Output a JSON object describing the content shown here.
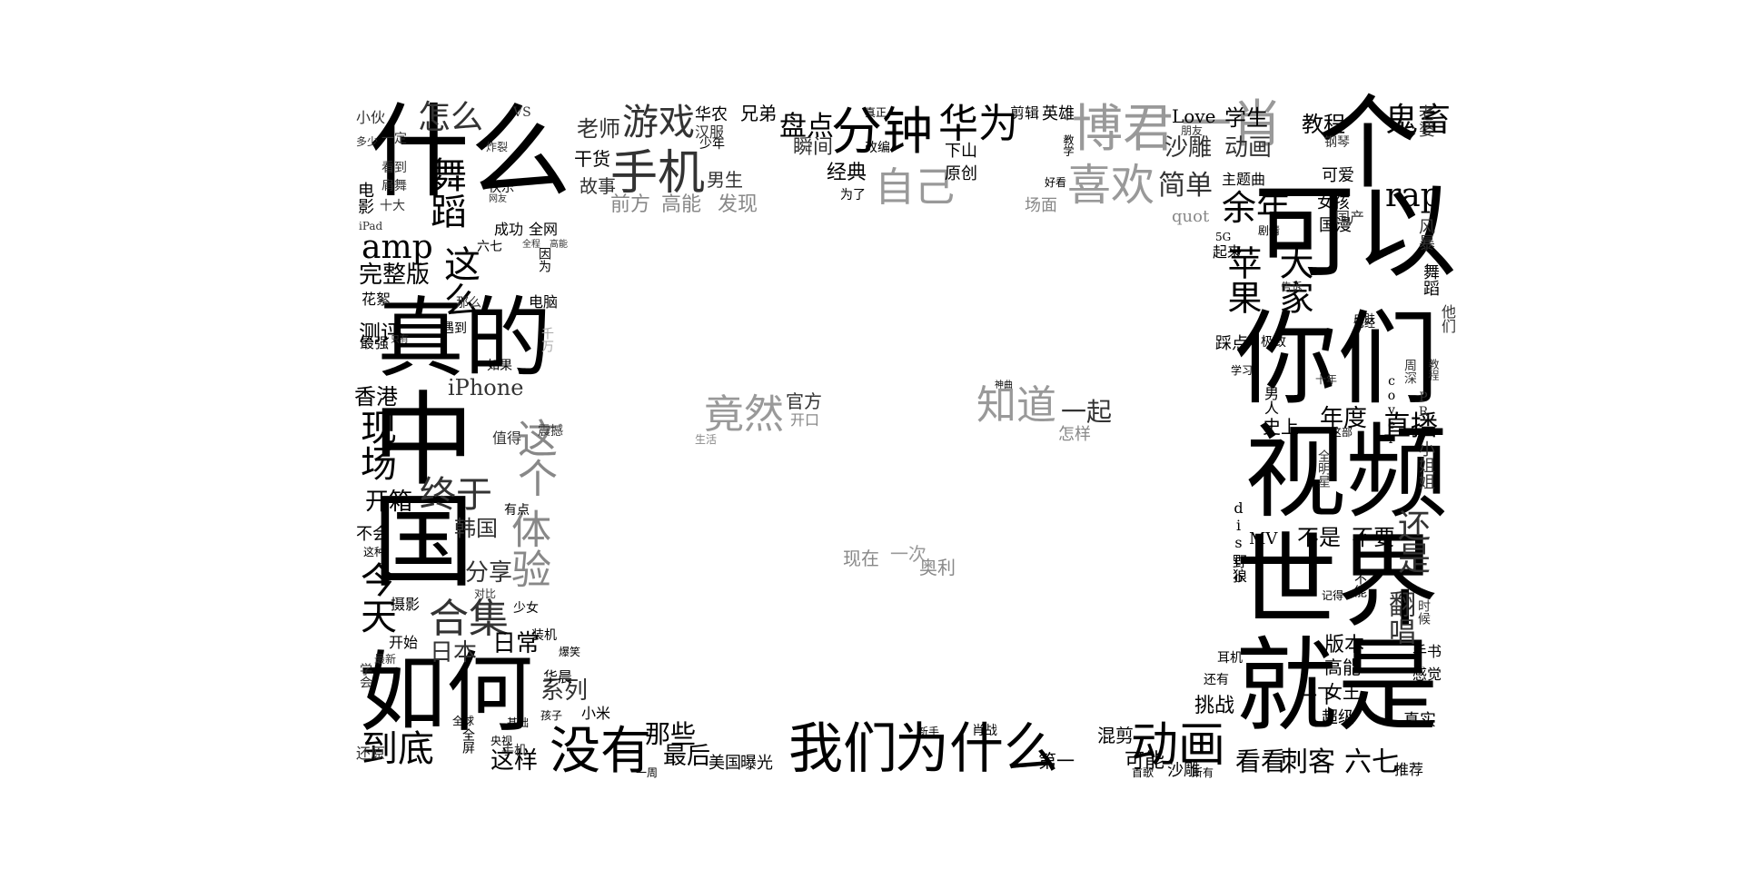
{
  "words": [
    {
      "text": "什么"
    },
    {
      "text": "个"
    },
    {
      "text": "可以"
    },
    {
      "text": "你们"
    },
    {
      "text": "视频"
    },
    {
      "text": "世界"
    },
    {
      "text": "就是"
    },
    {
      "text": "如何"
    },
    {
      "text": "真的"
    },
    {
      "text": "中国"
    },
    {
      "text": "我们"
    },
    {
      "text": "为什么"
    },
    {
      "text": "没有"
    },
    {
      "text": "动画"
    },
    {
      "text": "分钟"
    },
    {
      "text": "华为"
    },
    {
      "text": "博君"
    },
    {
      "text": "一肖"
    },
    {
      "text": "喜欢"
    },
    {
      "text": "自己"
    },
    {
      "text": "手机"
    },
    {
      "text": "游戏"
    },
    {
      "text": "知道"
    },
    {
      "text": "竟然"
    },
    {
      "text": "体验"
    },
    {
      "text": "这个"
    },
    {
      "text": "合集"
    },
    {
      "text": "今天"
    },
    {
      "text": "现场"
    },
    {
      "text": "终于"
    },
    {
      "text": "这么"
    },
    {
      "text": "舞蹈"
    },
    {
      "text": "怎么"
    },
    {
      "text": "余年"
    },
    {
      "text": "苹果"
    },
    {
      "text": "大家"
    },
    {
      "text": "还是"
    },
    {
      "text": "rap"
    },
    {
      "text": "鬼畜"
    },
    {
      "text": "amp"
    },
    {
      "text": "到底"
    },
    {
      "text": "简单"
    },
    {
      "text": "刺客"
    },
    {
      "text": "看看"
    },
    {
      "text": "六七"
    },
    {
      "text": "直播"
    },
    {
      "text": "翻唱"
    },
    {
      "text": "一起"
    },
    {
      "text": "盘点"
    },
    {
      "text": "完整版"
    },
    {
      "text": "iPhone"
    },
    {
      "text": "老师"
    },
    {
      "text": "那些"
    },
    {
      "text": "这样"
    },
    {
      "text": "最后"
    },
    {
      "text": "开箱"
    },
    {
      "text": "日本"
    },
    {
      "text": "系列"
    },
    {
      "text": "日常"
    },
    {
      "text": "分享"
    },
    {
      "text": "韩国"
    },
    {
      "text": "香港"
    },
    {
      "text": "测评"
    },
    {
      "text": "教程"
    },
    {
      "text": "学生"
    },
    {
      "text": "动画"
    },
    {
      "text": "沙雕"
    },
    {
      "text": "Love"
    },
    {
      "text": "英雄"
    },
    {
      "text": "剪辑"
    },
    {
      "text": "下山"
    },
    {
      "text": "原创"
    },
    {
      "text": "经典"
    },
    {
      "text": "瞬间"
    },
    {
      "text": "男生"
    },
    {
      "text": "干货"
    },
    {
      "text": "故事"
    },
    {
      "text": "前方"
    },
    {
      "text": "高能"
    },
    {
      "text": "发现"
    },
    {
      "text": "官方"
    },
    {
      "text": "开口"
    },
    {
      "text": "怎样"
    },
    {
      "text": "现在"
    },
    {
      "text": "一次"
    },
    {
      "text": "奥利"
    },
    {
      "text": "生活"
    },
    {
      "text": "年度"
    },
    {
      "text": "史上"
    },
    {
      "text": "不是"
    },
    {
      "text": "不要"
    },
    {
      "text": "版本"
    },
    {
      "text": "高能"
    },
    {
      "text": "女王"
    },
    {
      "text": "挑战"
    },
    {
      "text": "一下"
    },
    {
      "text": "混剪"
    },
    {
      "text": "可能"
    },
    {
      "text": "第一"
    },
    {
      "text": "沙雕"
    },
    {
      "text": "美国"
    },
    {
      "text": "曝光"
    },
    {
      "text": "华农"
    },
    {
      "text": "兄弟"
    },
    {
      "text": "少年"
    },
    {
      "text": "汉服"
    },
    {
      "text": "真正"
    },
    {
      "text": "改编"
    },
    {
      "text": "为了"
    },
    {
      "text": "场面"
    },
    {
      "text": "好看"
    },
    {
      "text": "主题曲"
    },
    {
      "text": "可爱"
    },
    {
      "text": "女孩"
    },
    {
      "text": "国漫"
    },
    {
      "text": "国产"
    },
    {
      "text": "老婆"
    },
    {
      "text": "风暴"
    },
    {
      "text": "quot"
    },
    {
      "text": "起来"
    },
    {
      "text": "踩点"
    },
    {
      "text": "极致"
    },
    {
      "text": "MV"
    },
    {
      "text": "disco"
    },
    {
      "text": "野狼"
    },
    {
      "text": "小姐姐"
    },
    {
      "text": "cover"
    },
    {
      "text": "男人"
    },
    {
      "text": "耳机"
    },
    {
      "text": "还有"
    },
    {
      "text": "超级"
    },
    {
      "text": "真实"
    },
    {
      "text": "推荐"
    },
    {
      "text": "感觉"
    },
    {
      "text": "手书"
    },
    {
      "text": "时候"
    },
    {
      "text": "首歌"
    },
    {
      "text": "所有"
    },
    {
      "text": "小伙"
    },
    {
      "text": "多少"
    },
    {
      "text": "一定"
    },
    {
      "text": "看到"
    },
    {
      "text": "肩舞"
    },
    {
      "text": "十大"
    },
    {
      "text": "电影"
    },
    {
      "text": "快乐"
    },
    {
      "text": "网友"
    },
    {
      "text": "炸裂"
    },
    {
      "text": "VS"
    },
    {
      "text": "成功"
    },
    {
      "text": "全网"
    },
    {
      "text": "六七"
    },
    {
      "text": "全程"
    },
    {
      "text": "高能"
    },
    {
      "text": "因为"
    },
    {
      "text": "花絮"
    },
    {
      "text": "那么"
    },
    {
      "text": "电脑"
    },
    {
      "text": "遇到"
    },
    {
      "text": "最强"
    },
    {
      "text": "只有"
    },
    {
      "text": "如果"
    },
    {
      "text": "值得"
    },
    {
      "text": "震撼"
    },
    {
      "text": "有点"
    },
    {
      "text": "不会"
    },
    {
      "text": "这种"
    },
    {
      "text": "对比"
    },
    {
      "text": "少女"
    },
    {
      "text": "装机"
    },
    {
      "text": "摄影"
    },
    {
      "text": "开始"
    },
    {
      "text": "最新"
    },
    {
      "text": "学会"
    },
    {
      "text": "爆笑"
    },
    {
      "text": "华晨"
    },
    {
      "text": "孩子"
    },
    {
      "text": "小米"
    },
    {
      "text": "全球"
    },
    {
      "text": "基础"
    },
    {
      "text": "全屏"
    },
    {
      "text": "央视"
    },
    {
      "text": "还原"
    },
    {
      "text": "一周"
    },
    {
      "text": "新手"
    },
    {
      "text": "肖战"
    },
    {
      "text": "钢琴"
    },
    {
      "text": "朋友"
    },
    {
      "text": "教学"
    },
    {
      "text": "剧情"
    },
    {
      "text": "5G"
    },
    {
      "text": "告诉"
    },
    {
      "text": "皮肤"
    },
    {
      "text": "已经"
    },
    {
      "text": "他们"
    },
    {
      "text": "舞蹈"
    },
    {
      "text": "PR"
    },
    {
      "text": "教程"
    },
    {
      "text": "周深"
    },
    {
      "text": "十年"
    },
    {
      "text": "学习"
    },
    {
      "text": "神曲"
    },
    {
      "text": "全明星"
    },
    {
      "text": "这部"
    },
    {
      "text": "不能"
    },
    {
      "text": "记得"
    },
    {
      "text": "iPad"
    },
    {
      "text": "千万"
    },
    {
      "text": "手机"
    }
  ]
}
